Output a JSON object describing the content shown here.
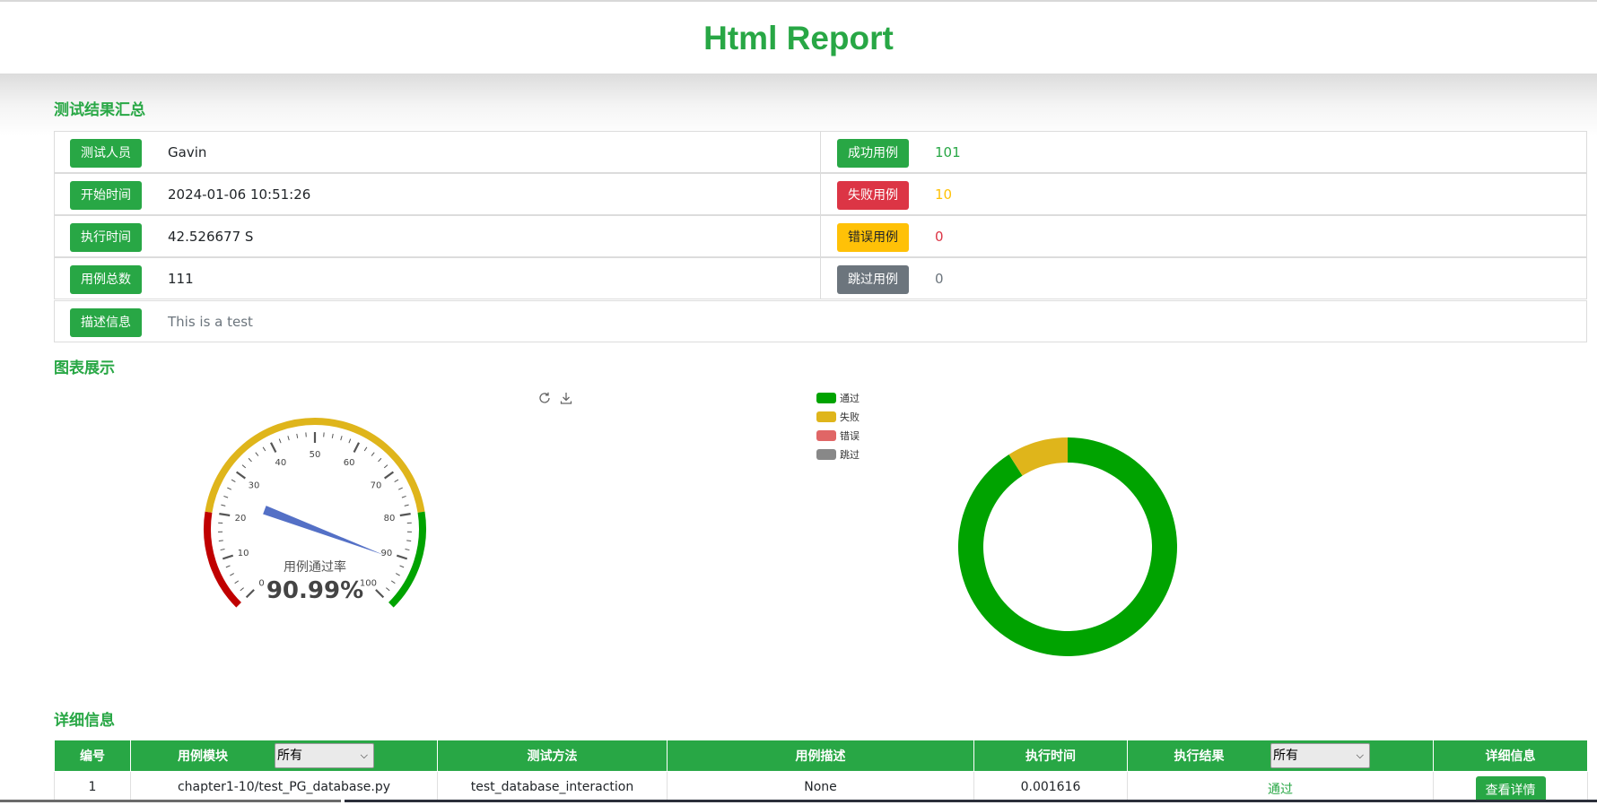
{
  "header": {
    "title": "Html Report"
  },
  "summary": {
    "section_title": "测试结果汇总",
    "left": [
      {
        "badge": "测试人员",
        "value": "Gavin"
      },
      {
        "badge": "开始时间",
        "value": "2024-01-06 10:51:26"
      },
      {
        "badge": "执行时间",
        "value": "42.526677 S"
      },
      {
        "badge": "用例总数",
        "value": "111"
      }
    ],
    "right": [
      {
        "badge": "成功用例",
        "value": "101",
        "color": "#28a745"
      },
      {
        "badge": "失败用例",
        "value": "10",
        "color": "#ffc107"
      },
      {
        "badge": "错误用例",
        "value": "0",
        "color": "#dc3545"
      },
      {
        "badge": "跳过用例",
        "value": "0",
        "color": "#6c757d"
      }
    ],
    "description": {
      "badge": "描述信息",
      "value": "This is a test"
    }
  },
  "charts": {
    "section_title": "图表展示",
    "toolbox": {
      "refresh_icon": "refresh-icon",
      "download_icon": "download-icon"
    },
    "gauge": {
      "label": "用例通过率",
      "value_text": "90.99%",
      "ticks": [
        "0",
        "10",
        "20",
        "30",
        "40",
        "50",
        "60",
        "70",
        "80",
        "90",
        "100"
      ]
    },
    "legend": [
      {
        "label": "通过",
        "color": "#00a300"
      },
      {
        "label": "失败",
        "color": "#dfb51b"
      },
      {
        "label": "错误",
        "color": "#e06666"
      },
      {
        "label": "跳过",
        "color": "#888888"
      }
    ]
  },
  "chart_data": [
    {
      "type": "gauge",
      "value": 90.99,
      "min": 0,
      "max": 100,
      "bands": [
        {
          "from": 0,
          "to": 20,
          "color": "#c00000"
        },
        {
          "from": 20,
          "to": 80,
          "color": "#dfb51b"
        },
        {
          "from": 80,
          "to": 100,
          "color": "#00a300"
        }
      ]
    },
    {
      "type": "pie",
      "categories": [
        "通过",
        "失败",
        "错误",
        "跳过"
      ],
      "values": [
        101,
        10,
        0,
        0
      ],
      "colors": [
        "#00a300",
        "#dfb51b",
        "#e06666",
        "#888888"
      ]
    }
  ],
  "details": {
    "section_title": "详细信息",
    "columns": {
      "no": "编号",
      "module": "用例模块",
      "method": "测试方法",
      "desc": "用例描述",
      "time": "执行时间",
      "result": "执行结果",
      "info": "详细信息"
    },
    "module_filter": "所有",
    "result_filter": "所有",
    "rows": [
      {
        "no": "1",
        "module": "chapter1-10/test_PG_database.py",
        "method": "test_database_interaction",
        "desc": "None",
        "time": "0.001616",
        "result": "通过",
        "action": "查看详情"
      }
    ]
  }
}
